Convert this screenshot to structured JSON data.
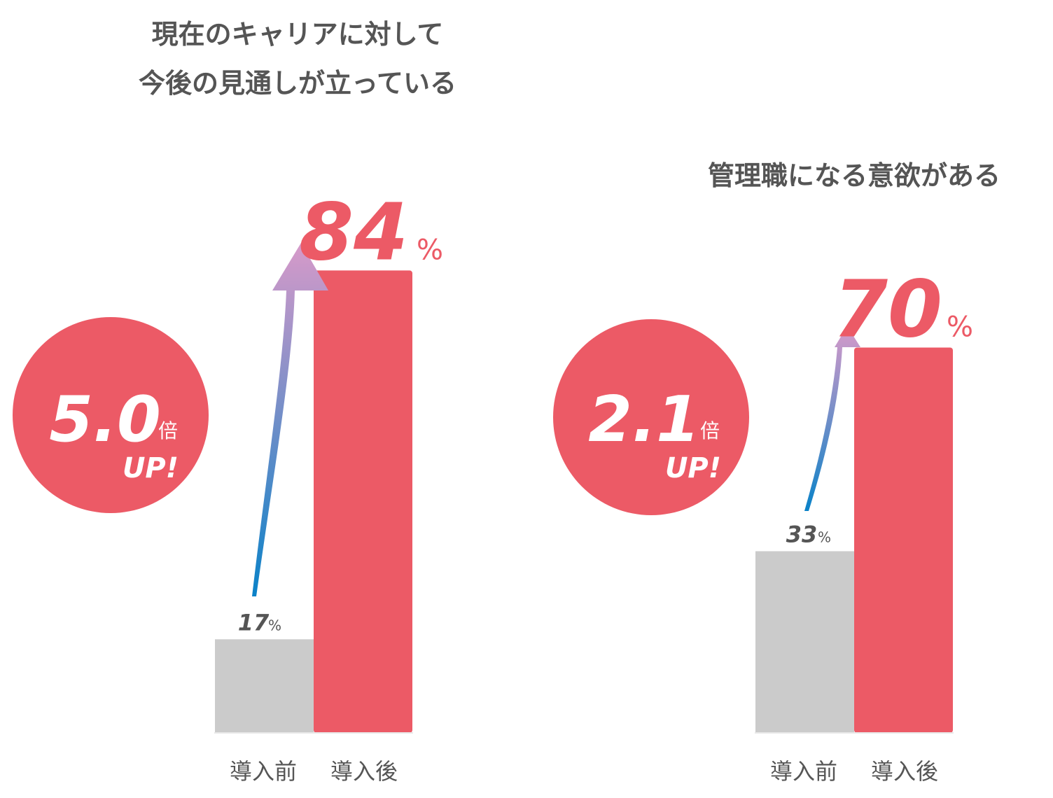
{
  "colors": {
    "after": "#ec5a66",
    "before": "#cbcbcb",
    "text": "#555555",
    "arrow_top": "#d79ac9",
    "arrow_bottom": "#0a82c8"
  },
  "chart_data": [
    {
      "type": "bar",
      "title_lines": [
        "現在のキャリアに対して",
        "今後の見通しが立っている"
      ],
      "categories": [
        "導入前",
        "導入後"
      ],
      "values": [
        17,
        84
      ],
      "value_labels": [
        "17",
        "84"
      ],
      "unit": "%",
      "ylim": [
        0,
        100
      ],
      "multiplier": {
        "value": "5.0",
        "unit": "倍",
        "label": "UP!"
      }
    },
    {
      "type": "bar",
      "title_lines": [
        "管理職になる意欲がある"
      ],
      "categories": [
        "導入前",
        "導入後"
      ],
      "values": [
        33,
        70
      ],
      "value_labels": [
        "33",
        "70"
      ],
      "unit": "%",
      "ylim": [
        0,
        100
      ],
      "multiplier": {
        "value": "2.1",
        "unit": "倍",
        "label": "UP!"
      }
    }
  ]
}
